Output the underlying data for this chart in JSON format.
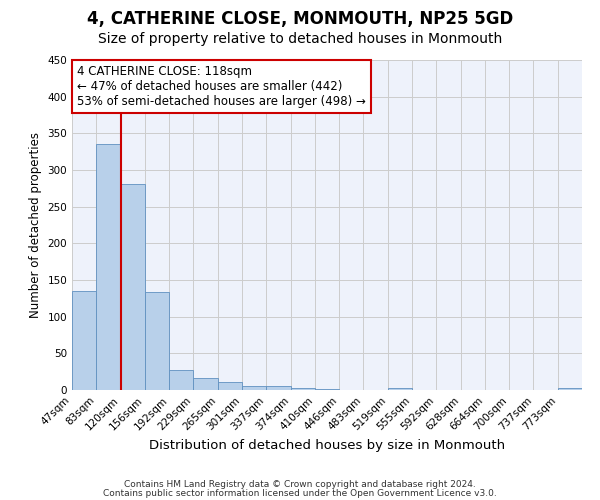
{
  "title": "4, CATHERINE CLOSE, MONMOUTH, NP25 5GD",
  "subtitle": "Size of property relative to detached houses in Monmouth",
  "xlabel": "Distribution of detached houses by size in Monmouth",
  "ylabel": "Number of detached properties",
  "bar_color": "#b8d0ea",
  "bar_edge_color": "#6090c0",
  "bin_labels": [
    "47sqm",
    "83sqm",
    "120sqm",
    "156sqm",
    "192sqm",
    "229sqm",
    "265sqm",
    "301sqm",
    "337sqm",
    "374sqm",
    "410sqm",
    "446sqm",
    "483sqm",
    "519sqm",
    "555sqm",
    "592sqm",
    "628sqm",
    "664sqm",
    "700sqm",
    "737sqm",
    "773sqm"
  ],
  "bar_heights": [
    135,
    336,
    281,
    133,
    27,
    16,
    11,
    6,
    5,
    3,
    1,
    0,
    0,
    3,
    0,
    0,
    0,
    0,
    0,
    0,
    3
  ],
  "vline_index": 2,
  "vline_color": "#cc0000",
  "annotation_title": "4 CATHERINE CLOSE: 118sqm",
  "annotation_line1": "← 47% of detached houses are smaller (442)",
  "annotation_line2": "53% of semi-detached houses are larger (498) →",
  "annotation_box_color": "#cc0000",
  "ylim": [
    0,
    450
  ],
  "yticks": [
    0,
    50,
    100,
    150,
    200,
    250,
    300,
    350,
    400,
    450
  ],
  "grid_color": "#cccccc",
  "bg_color": "#eef2fb",
  "footer_line1": "Contains HM Land Registry data © Crown copyright and database right 2024.",
  "footer_line2": "Contains public sector information licensed under the Open Government Licence v3.0.",
  "title_fontsize": 12,
  "subtitle_fontsize": 10,
  "xlabel_fontsize": 9.5,
  "ylabel_fontsize": 8.5,
  "tick_fontsize": 7.5,
  "annotation_fontsize": 8.5,
  "footer_fontsize": 6.5
}
